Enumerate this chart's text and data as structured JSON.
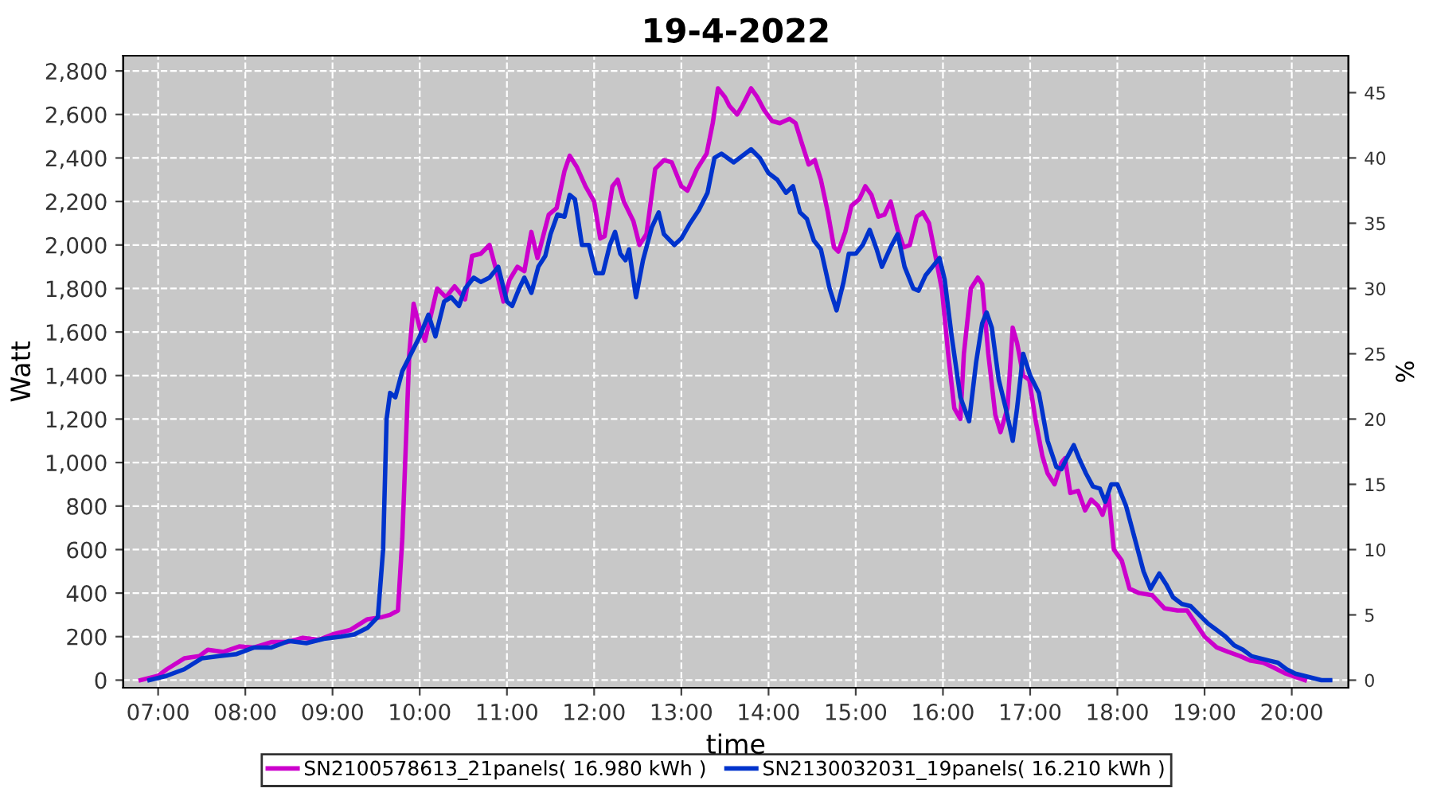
{
  "chart_data": {
    "type": "line",
    "title": "19-4-2022",
    "xlabel": "time",
    "ylabel": "Watt",
    "y2label": "%",
    "xlim": [
      6.6,
      20.65
    ],
    "xticks": [
      {
        "value": 7,
        "label": "07:00"
      },
      {
        "value": 8,
        "label": "08:00"
      },
      {
        "value": 9,
        "label": "09:00"
      },
      {
        "value": 10,
        "label": "10:00"
      },
      {
        "value": 11,
        "label": "11:00"
      },
      {
        "value": 12,
        "label": "12:00"
      },
      {
        "value": 13,
        "label": "13:00"
      },
      {
        "value": 14,
        "label": "14:00"
      },
      {
        "value": 15,
        "label": "15:00"
      },
      {
        "value": 16,
        "label": "16:00"
      },
      {
        "value": 17,
        "label": "17:00"
      },
      {
        "value": 18,
        "label": "18:00"
      },
      {
        "value": 19,
        "label": "19:00"
      },
      {
        "value": 20,
        "label": "20:00"
      }
    ],
    "ylim": [
      -35,
      2870
    ],
    "yticks": [
      0,
      200,
      400,
      600,
      800,
      {
        "value": 1000,
        "label": "1,000"
      },
      {
        "value": 1200,
        "label": "1,200"
      },
      {
        "value": 1400,
        "label": "1,400"
      },
      {
        "value": 1600,
        "label": "1,600"
      },
      {
        "value": 1800,
        "label": "1,800"
      },
      {
        "value": 2000,
        "label": "2,000"
      },
      {
        "value": 2200,
        "label": "2,200"
      },
      {
        "value": 2400,
        "label": "2,400"
      },
      {
        "value": 2600,
        "label": "2,600"
      },
      {
        "value": 2800,
        "label": "2,800"
      }
    ],
    "y2lim": [
      -0.58,
      47.83
    ],
    "y2ticks": [
      0,
      5,
      10,
      15,
      20,
      25,
      30,
      35,
      40,
      45
    ],
    "grid": true,
    "legend": "bottom",
    "marker": "none",
    "line_style": "solid",
    "series": [
      {
        "name": "SN2100578613_21panels( 16.980 kWh )",
        "color": "#cc00cc",
        "x": [
          6.8,
          7.0,
          7.1,
          7.3,
          7.47,
          7.57,
          7.75,
          7.93,
          8.1,
          8.3,
          8.48,
          8.66,
          8.84,
          9.0,
          9.2,
          9.4,
          9.57,
          9.66,
          9.75,
          9.8,
          9.88,
          9.93,
          10.0,
          10.06,
          10.2,
          10.3,
          10.4,
          10.52,
          10.6,
          10.7,
          10.8,
          10.88,
          10.96,
          11.03,
          11.12,
          11.2,
          11.28,
          11.35,
          11.48,
          11.57,
          11.66,
          11.72,
          11.8,
          11.9,
          12.0,
          12.07,
          12.12,
          12.21,
          12.27,
          12.34,
          12.45,
          12.52,
          12.6,
          12.7,
          12.8,
          12.89,
          13.0,
          13.07,
          13.18,
          13.29,
          13.36,
          13.42,
          13.5,
          13.55,
          13.64,
          13.7,
          13.8,
          13.87,
          13.95,
          14.04,
          14.13,
          14.24,
          14.31,
          14.38,
          14.46,
          14.53,
          14.6,
          14.68,
          14.75,
          14.8,
          14.88,
          14.95,
          15.04,
          15.11,
          15.18,
          15.26,
          15.33,
          15.4,
          15.48,
          15.55,
          15.62,
          15.7,
          15.77,
          15.84,
          15.9,
          15.99,
          16.06,
          16.13,
          16.2,
          16.24,
          16.32,
          16.4,
          16.45,
          16.52,
          16.6,
          16.66,
          16.74,
          16.8,
          16.85,
          16.92,
          16.99,
          17.06,
          17.14,
          17.2,
          17.28,
          17.36,
          17.4,
          17.46,
          17.55,
          17.63,
          17.7,
          17.78,
          17.83,
          17.9,
          17.96,
          18.05,
          18.14,
          18.25,
          18.4,
          18.54,
          18.69,
          18.8,
          18.9,
          19.0,
          19.14,
          19.27,
          19.41,
          19.52,
          19.67,
          19.78,
          19.93,
          20.0,
          20.15
        ],
        "values": [
          0,
          20,
          50,
          100,
          110,
          140,
          130,
          155,
          150,
          175,
          175,
          195,
          185,
          210,
          230,
          280,
          290,
          300,
          320,
          650,
          1500,
          1730,
          1620,
          1560,
          1800,
          1760,
          1810,
          1750,
          1950,
          1960,
          2000,
          1880,
          1740,
          1840,
          1900,
          1880,
          2060,
          1940,
          2140,
          2170,
          2340,
          2410,
          2360,
          2270,
          2200,
          2030,
          2040,
          2270,
          2300,
          2200,
          2110,
          2000,
          2050,
          2350,
          2390,
          2380,
          2270,
          2250,
          2350,
          2420,
          2560,
          2720,
          2680,
          2640,
          2600,
          2640,
          2720,
          2680,
          2620,
          2570,
          2560,
          2580,
          2560,
          2470,
          2370,
          2390,
          2300,
          2150,
          1990,
          1970,
          2060,
          2180,
          2210,
          2270,
          2230,
          2130,
          2140,
          2200,
          2070,
          1990,
          2000,
          2130,
          2150,
          2100,
          1980,
          1790,
          1500,
          1250,
          1200,
          1500,
          1800,
          1850,
          1820,
          1500,
          1220,
          1140,
          1250,
          1620,
          1550,
          1400,
          1380,
          1200,
          1030,
          950,
          900,
          1000,
          1020,
          860,
          870,
          780,
          830,
          800,
          760,
          850,
          600,
          550,
          420,
          400,
          390,
          330,
          320,
          320,
          260,
          200,
          150,
          130,
          110,
          90,
          80,
          60,
          30,
          20,
          0
        ]
      },
      {
        "name": "SN2130032031_19panels( 16.210 kWh )",
        "color": "#0033cc",
        "x": [
          6.9,
          7.1,
          7.3,
          7.5,
          7.7,
          7.9,
          8.1,
          8.3,
          8.5,
          8.7,
          8.9,
          9.1,
          9.25,
          9.4,
          9.52,
          9.58,
          9.62,
          9.66,
          9.72,
          9.8,
          9.9,
          10.0,
          10.1,
          10.18,
          10.28,
          10.36,
          10.45,
          10.52,
          10.62,
          10.7,
          10.8,
          10.9,
          11.0,
          11.06,
          11.14,
          11.2,
          11.28,
          11.36,
          11.44,
          11.5,
          11.58,
          11.66,
          11.72,
          11.78,
          11.86,
          11.94,
          12.02,
          12.1,
          12.18,
          12.24,
          12.3,
          12.36,
          12.4,
          12.48,
          12.56,
          12.66,
          12.74,
          12.8,
          12.92,
          13.0,
          13.1,
          13.2,
          13.3,
          13.38,
          13.46,
          13.6,
          13.7,
          13.8,
          13.9,
          14.0,
          14.1,
          14.2,
          14.28,
          14.36,
          14.44,
          14.52,
          14.6,
          14.7,
          14.78,
          14.86,
          14.92,
          15.0,
          15.08,
          15.16,
          15.24,
          15.3,
          15.4,
          15.48,
          15.56,
          15.66,
          15.72,
          15.8,
          15.88,
          15.96,
          16.02,
          16.1,
          16.2,
          16.3,
          16.38,
          16.45,
          16.5,
          16.56,
          16.64,
          16.72,
          16.8,
          16.85,
          16.92,
          17.0,
          17.1,
          17.2,
          17.3,
          17.36,
          17.42,
          17.5,
          17.56,
          17.64,
          17.72,
          17.8,
          17.86,
          17.93,
          18.0,
          18.1,
          18.2,
          18.3,
          18.38,
          18.48,
          18.56,
          18.64,
          18.74,
          18.84,
          18.94,
          19.04,
          19.14,
          19.24,
          19.34,
          19.44,
          19.54,
          19.64,
          19.74,
          19.84,
          19.94,
          20.04,
          20.14,
          20.24,
          20.34,
          20.44
        ],
        "values": [
          0,
          20,
          50,
          100,
          110,
          120,
          150,
          150,
          180,
          170,
          190,
          200,
          210,
          240,
          290,
          600,
          1200,
          1320,
          1300,
          1420,
          1500,
          1580,
          1680,
          1580,
          1740,
          1760,
          1720,
          1800,
          1850,
          1830,
          1850,
          1900,
          1740,
          1720,
          1800,
          1850,
          1780,
          1900,
          1950,
          2050,
          2140,
          2130,
          2230,
          2210,
          2000,
          2000,
          1870,
          1870,
          2000,
          2060,
          1960,
          1930,
          1980,
          1760,
          1930,
          2080,
          2150,
          2050,
          2000,
          2030,
          2100,
          2160,
          2240,
          2400,
          2420,
          2380,
          2410,
          2440,
          2400,
          2330,
          2300,
          2240,
          2270,
          2150,
          2120,
          2020,
          1980,
          1800,
          1700,
          1830,
          1960,
          1960,
          2000,
          2070,
          1980,
          1900,
          1990,
          2050,
          1900,
          1800,
          1790,
          1860,
          1900,
          1940,
          1840,
          1580,
          1300,
          1190,
          1460,
          1640,
          1690,
          1620,
          1380,
          1250,
          1100,
          1250,
          1500,
          1400,
          1320,
          1100,
          980,
          970,
          1020,
          1080,
          1020,
          950,
          890,
          880,
          820,
          900,
          900,
          800,
          650,
          500,
          420,
          490,
          440,
          380,
          350,
          340,
          300,
          260,
          230,
          200,
          160,
          140,
          110,
          100,
          90,
          80,
          50,
          30,
          20,
          10,
          0,
          0
        ]
      }
    ]
  }
}
